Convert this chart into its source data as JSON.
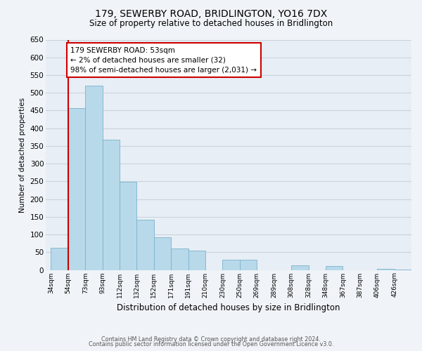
{
  "title": "179, SEWERBY ROAD, BRIDLINGTON, YO16 7DX",
  "subtitle": "Size of property relative to detached houses in Bridlington",
  "xlabel": "Distribution of detached houses by size in Bridlington",
  "ylabel": "Number of detached properties",
  "bins": [
    "34sqm",
    "54sqm",
    "73sqm",
    "93sqm",
    "112sqm",
    "132sqm",
    "152sqm",
    "171sqm",
    "191sqm",
    "210sqm",
    "230sqm",
    "250sqm",
    "269sqm",
    "289sqm",
    "308sqm",
    "328sqm",
    "348sqm",
    "367sqm",
    "387sqm",
    "406sqm",
    "426sqm"
  ],
  "values": [
    62,
    457,
    521,
    368,
    249,
    141,
    93,
    61,
    55,
    0,
    28,
    29,
    0,
    0,
    13,
    0,
    10,
    0,
    0,
    3,
    2
  ],
  "bar_color": "#b8d9ea",
  "bar_edge_color": "#7ab3cc",
  "highlight_line_color": "#cc0000",
  "annotation_text": "179 SEWERBY ROAD: 53sqm\n← 2% of detached houses are smaller (32)\n98% of semi-detached houses are larger (2,031) →",
  "annotation_box_color": "#ffffff",
  "annotation_box_edge": "#cc0000",
  "ylim": [
    0,
    650
  ],
  "yticks": [
    0,
    50,
    100,
    150,
    200,
    250,
    300,
    350,
    400,
    450,
    500,
    550,
    600,
    650
  ],
  "footer_line1": "Contains HM Land Registry data © Crown copyright and database right 2024.",
  "footer_line2": "Contains public sector information licensed under the Open Government Licence v3.0.",
  "bg_color": "#f0f4f8",
  "plot_bg_color": "#e8eef5",
  "grid_color": "#c8d4e0"
}
